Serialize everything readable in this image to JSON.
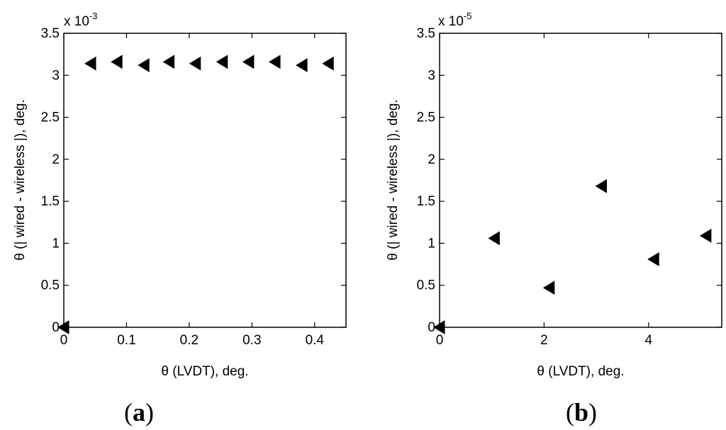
{
  "chart_data": [
    {
      "panel": "(a)",
      "type": "scatter",
      "marker": "left-pointing triangle",
      "title": "",
      "xlabel": "θ (LVDT), deg.",
      "ylabel": "θ (| wired - wireless |), deg.",
      "y_multiplier": "x 10-3",
      "xlim": [
        0,
        0.45
      ],
      "ylim": [
        0,
        3.5
      ],
      "xticks": [
        "0",
        "0.1",
        "0.2",
        "0.3",
        "0.4"
      ],
      "yticks": [
        "0",
        "0.5",
        "1",
        "1.5",
        "2",
        "2.5",
        "3",
        "3.5"
      ],
      "points": [
        {
          "x": 0.0,
          "y": 0.0
        },
        {
          "x": 0.043,
          "y": 3.14
        },
        {
          "x": 0.085,
          "y": 3.16
        },
        {
          "x": 0.128,
          "y": 3.12
        },
        {
          "x": 0.168,
          "y": 3.16
        },
        {
          "x": 0.21,
          "y": 3.14
        },
        {
          "x": 0.253,
          "y": 3.16
        },
        {
          "x": 0.295,
          "y": 3.16
        },
        {
          "x": 0.337,
          "y": 3.16
        },
        {
          "x": 0.38,
          "y": 3.12
        },
        {
          "x": 0.422,
          "y": 3.14
        }
      ]
    },
    {
      "panel": "(b)",
      "type": "scatter",
      "marker": "left-pointing triangle",
      "title": "",
      "xlabel": "θ (LVDT), deg.",
      "ylabel": "θ (| wired - wireless |), deg.",
      "y_multiplier": "x 10-5",
      "xlim": [
        0,
        5.4
      ],
      "ylim": [
        0,
        3.5
      ],
      "xticks": [
        "0",
        "2",
        "4"
      ],
      "yticks": [
        "0",
        "0.5",
        "1",
        "1.5",
        "2",
        "2.5",
        "3",
        "3.5"
      ],
      "points": [
        {
          "x": 0.0,
          "y": 0.0
        },
        {
          "x": 1.05,
          "y": 1.06
        },
        {
          "x": 2.1,
          "y": 0.47
        },
        {
          "x": 3.1,
          "y": 1.68
        },
        {
          "x": 4.1,
          "y": 0.81
        },
        {
          "x": 5.1,
          "y": 1.09
        }
      ]
    }
  ],
  "panel_labels": {
    "a_open": "(",
    "a_letter": "a",
    "a_close": ")",
    "b_open": "(",
    "b_letter": "b",
    "b_close": ")"
  },
  "exponents": {
    "a_base": "x 10",
    "a_power": "-3",
    "b_base": "x 10",
    "b_power": "-5"
  }
}
